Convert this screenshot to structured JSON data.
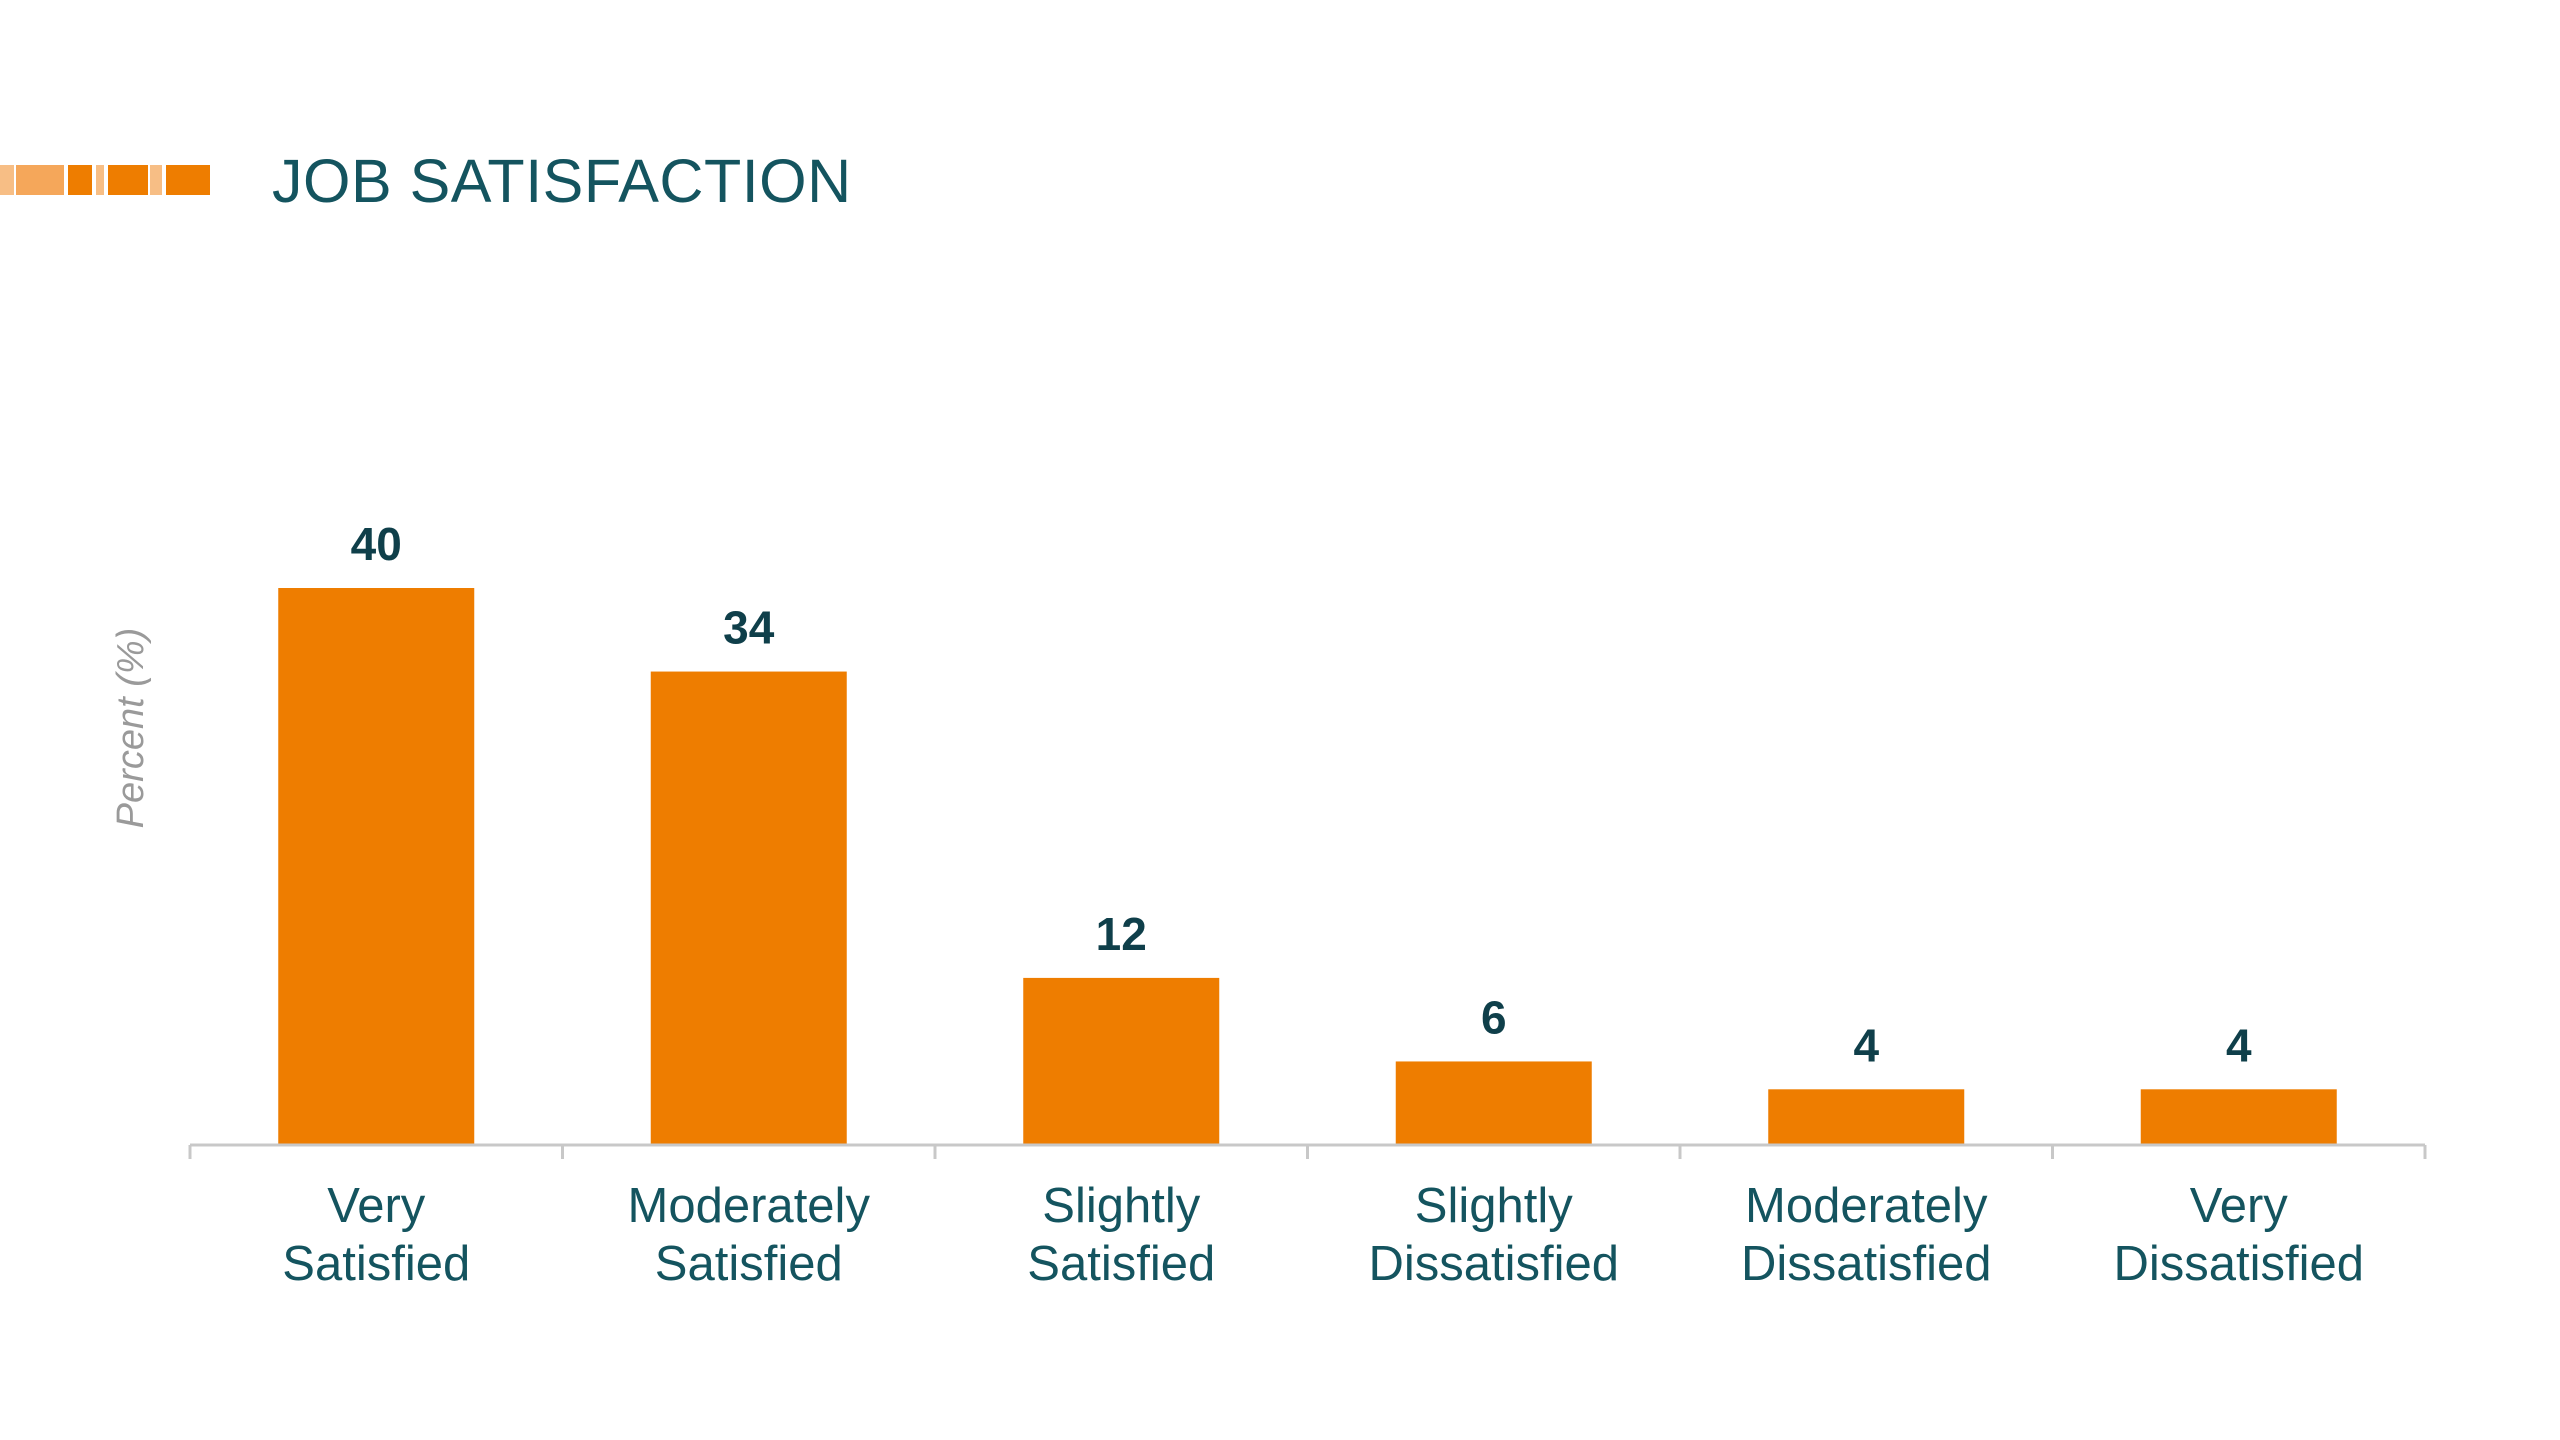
{
  "slide": {
    "title": "JOB SATISFACTION"
  },
  "colors": {
    "bar": "#ee7d00",
    "title": "#14545f",
    "value_label": "#0f3f4a",
    "axis": "#c8c8c8",
    "decoration_light": "#f7be85",
    "decoration_dark": "#ee7d00"
  },
  "chart_data": {
    "type": "bar",
    "title": "",
    "xlabel": "",
    "ylabel": "Percent (%)",
    "categories": [
      [
        "Very",
        "Satisfied"
      ],
      [
        "Moderately",
        "Satisfied"
      ],
      [
        "Slightly",
        "Satisfied"
      ],
      [
        "Slightly",
        "Dissatisfied"
      ],
      [
        "Moderately",
        "Dissatisfied"
      ],
      [
        "Very",
        "Dissatisfied"
      ]
    ],
    "values": [
      40,
      34,
      12,
      6,
      4,
      4
    ],
    "value_labels": [
      "40",
      "34",
      "12",
      "6",
      "4",
      "4"
    ],
    "ylim": [
      0,
      40
    ],
    "grid": false,
    "legend": "none"
  }
}
